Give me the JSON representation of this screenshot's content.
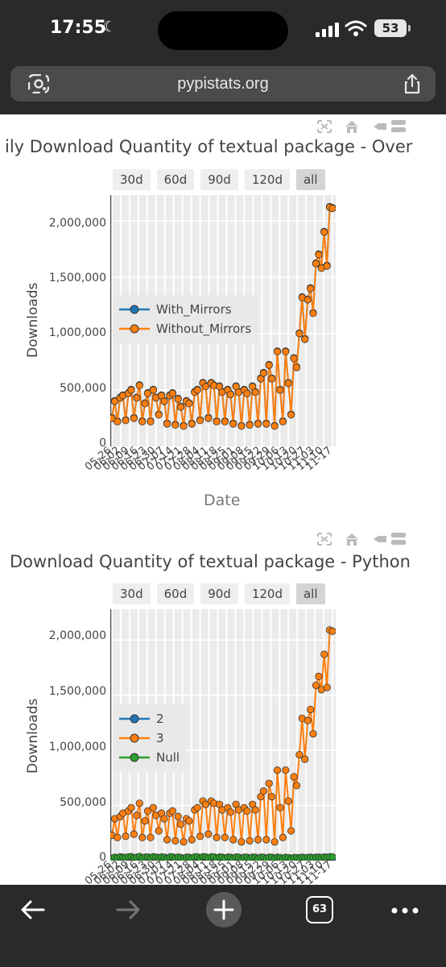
{
  "status": {
    "time": "17:55",
    "battery": "53"
  },
  "browser": {
    "url": "pypistats.org",
    "tab_count": "63"
  },
  "chart1": {
    "title": "ily Download Quantity of textual package - Over",
    "range_buttons": [
      "30d",
      "60d",
      "90d",
      "120d",
      "all"
    ],
    "active_range": "all",
    "y_ticks": [
      "0",
      "500,000",
      "1,000,000",
      "1,500,000",
      "2,000,000"
    ],
    "ylabel": "Downloads",
    "xlabel": "Date",
    "x_ticks": [
      "05-26",
      "06-02",
      "06-09",
      "06-16",
      "06-23",
      "06-30",
      "07-07",
      "07-14",
      "07-21",
      "07-28",
      "08-04",
      "08-11",
      "08-18",
      "08-25",
      "09-01",
      "09-08",
      "09-15",
      "09-22",
      "09-29",
      "10-06",
      "10-13",
      "10-20",
      "10-27",
      "11-03",
      "11-10",
      "11-17"
    ],
    "legend": [
      "With_Mirrors",
      "Without_Mirrors"
    ]
  },
  "chart2": {
    "title": "Download Quantity of textual package - Python",
    "range_buttons": [
      "30d",
      "60d",
      "90d",
      "120d",
      "all"
    ],
    "active_range": "all",
    "y_ticks": [
      "0",
      "500,000",
      "1,000,000",
      "1,500,000",
      "2,000,000"
    ],
    "ylabel": "Downloads",
    "legend": [
      "2",
      "3",
      "Null"
    ]
  },
  "colors": {
    "blue": "#1f77b4",
    "orange": "#ff7f0e",
    "green": "#2ca02c",
    "grid": "#ffffff",
    "plot_bg": "#ebebeb"
  },
  "chart_data": [
    {
      "type": "line",
      "title": "ily Download Quantity of textual package - Over",
      "xlabel": "Date",
      "ylabel": "Downloads",
      "ylim": [
        0,
        2200000
      ],
      "series": [
        {
          "name": "Without_Mirrors",
          "values": [
            250000,
            400000,
            220000,
            430000,
            450000,
            230000,
            470000,
            500000,
            250000,
            430000,
            540000,
            220000,
            380000,
            470000,
            220000,
            500000,
            430000,
            280000,
            450000,
            400000,
            200000,
            450000,
            470000,
            190000,
            420000,
            350000,
            180000,
            400000,
            380000,
            200000,
            480000,
            500000,
            230000,
            560000,
            530000,
            250000,
            560000,
            540000,
            220000,
            530000,
            480000,
            220000,
            500000,
            460000,
            200000,
            530000,
            480000,
            180000,
            500000,
            470000,
            190000,
            530000,
            480000,
            200000,
            600000,
            650000,
            200000,
            720000,
            600000,
            180000,
            840000,
            500000,
            220000,
            840000,
            560000,
            280000,
            780000,
            700000,
            1000000,
            1320000,
            950000,
            1300000,
            1400000,
            1180000,
            1620000,
            1700000,
            1580000,
            1900000,
            1600000,
            2120000,
            2110000
          ]
        },
        {
          "name": "With_Mirrors",
          "values": [
            255000,
            405000,
            225000,
            435000,
            455000,
            235000,
            475000,
            505000,
            255000,
            435000,
            545000,
            225000,
            385000,
            475000,
            225000,
            505000,
            435000,
            285000,
            455000,
            405000,
            205000,
            455000,
            475000,
            195000,
            425000,
            355000,
            185000,
            405000,
            385000,
            205000,
            485000,
            505000,
            235000,
            565000,
            535000,
            255000,
            565000,
            545000,
            225000,
            535000,
            485000,
            225000,
            505000,
            465000,
            205000,
            535000,
            485000,
            185000,
            505000,
            475000,
            195000,
            535000,
            485000,
            205000,
            605000,
            655000,
            205000,
            725000,
            605000,
            185000,
            845000,
            505000,
            225000,
            845000,
            565000,
            285000,
            785000,
            705000,
            1005000,
            1325000,
            955000,
            1305000,
            1405000,
            1185000,
            1625000,
            1705000,
            1585000,
            1905000,
            1605000,
            2125000,
            2115000
          ]
        }
      ]
    },
    {
      "type": "line",
      "title": "Download Quantity of textual package - Python",
      "ylabel": "Downloads",
      "ylim": [
        0,
        2250000
      ],
      "series": [
        {
          "name": "3",
          "values": [
            230000,
            380000,
            210000,
            400000,
            430000,
            220000,
            450000,
            480000,
            240000,
            410000,
            520000,
            210000,
            360000,
            450000,
            210000,
            480000,
            410000,
            270000,
            430000,
            380000,
            190000,
            430000,
            450000,
            180000,
            400000,
            330000,
            170000,
            380000,
            360000,
            190000,
            460000,
            480000,
            220000,
            540000,
            510000,
            240000,
            540000,
            520000,
            210000,
            510000,
            460000,
            210000,
            480000,
            440000,
            190000,
            510000,
            460000,
            170000,
            480000,
            450000,
            180000,
            510000,
            460000,
            190000,
            580000,
            630000,
            190000,
            700000,
            580000,
            170000,
            820000,
            480000,
            210000,
            820000,
            540000,
            270000,
            760000,
            680000,
            960000,
            1290000,
            920000,
            1270000,
            1370000,
            1150000,
            1590000,
            1670000,
            1550000,
            1870000,
            1570000,
            2090000,
            2080000
          ]
        },
        {
          "name": "Null",
          "values": [
            20000,
            30000,
            25000,
            35000,
            30000,
            28000,
            33000,
            36000,
            25000,
            30000,
            38000,
            22000,
            30000,
            33000,
            24000,
            35000,
            31000,
            26000,
            32000,
            30000,
            20000,
            32000,
            34000,
            22000,
            31000,
            28000,
            20000,
            30000,
            30000,
            22000,
            33000,
            34000,
            22000,
            35000,
            33000,
            24000,
            34000,
            33000,
            22000,
            32000,
            30000,
            22000,
            31000,
            30000,
            20000,
            32000,
            30000,
            18000,
            30000,
            30000,
            18000,
            31000,
            30000,
            18000,
            30000,
            30000,
            18000,
            30000,
            30000,
            18000,
            30000,
            28000,
            18000,
            29000,
            28000,
            18000,
            28000,
            28000,
            26000,
            30000,
            26000,
            28000,
            30000,
            26000,
            30000,
            30000,
            28000,
            32000,
            30000,
            34000,
            34000
          ]
        },
        {
          "name": "2",
          "values": [
            500,
            600,
            400,
            600,
            600,
            400,
            600,
            700,
            400,
            600,
            700,
            400,
            500,
            600,
            400,
            600,
            600,
            500,
            600,
            500,
            400,
            600,
            600,
            400,
            600,
            500,
            400,
            500,
            500,
            400,
            600,
            600,
            400,
            700,
            600,
            400,
            700,
            600,
            400,
            600,
            600,
            400,
            600,
            600,
            400,
            600,
            600,
            400,
            600,
            600,
            400,
            600,
            600,
            400,
            600,
            600,
            400,
            600,
            600,
            400,
            600,
            600,
            400,
            600,
            600,
            400,
            600,
            600,
            500,
            700,
            500,
            600,
            700,
            500,
            700,
            700,
            600,
            800,
            700,
            800,
            800
          ]
        }
      ]
    }
  ]
}
